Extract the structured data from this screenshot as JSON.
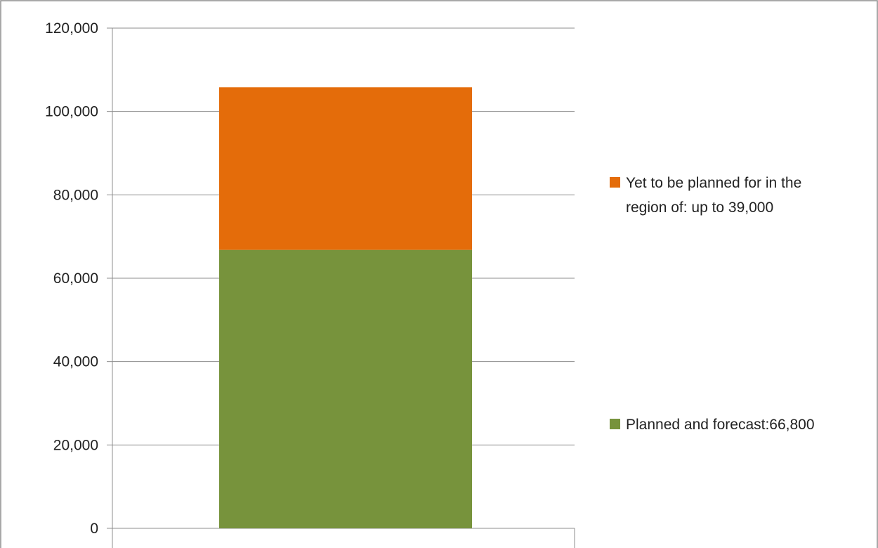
{
  "chart_data": {
    "type": "bar",
    "stacked": true,
    "categories": [
      ""
    ],
    "series": [
      {
        "name": "Planned and forecast:66,800",
        "values": [
          66800
        ],
        "color": "#77933c"
      },
      {
        "name": "Yet to be planned for in the region of: up to 39,000",
        "values": [
          39000
        ],
        "color": "#e46c0a"
      }
    ],
    "title": "",
    "xlabel": "",
    "ylabel": "",
    "ylim": [
      0,
      120000
    ],
    "yticks": [
      "0",
      "20,000",
      "40,000",
      "60,000",
      "80,000",
      "100,000",
      "120,000"
    ],
    "grid": true,
    "legend_position": "right",
    "legend_items": [
      {
        "lines": [
          "Yet to be planned for in the",
          "region of: up to 39,000"
        ],
        "color": "#e46c0a"
      },
      {
        "lines": [
          "Planned and forecast:66,800"
        ],
        "color": "#77933c"
      }
    ]
  }
}
